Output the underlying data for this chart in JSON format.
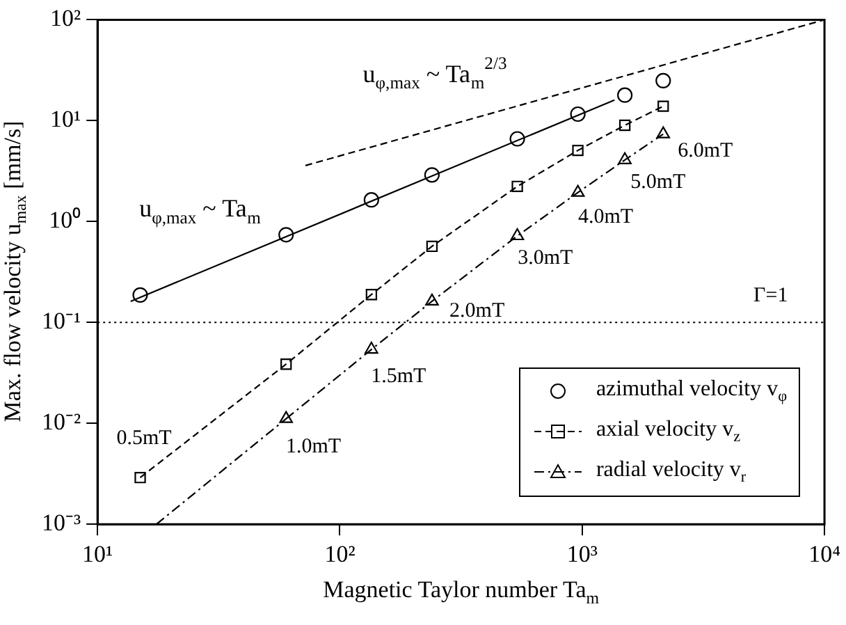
{
  "chart_data": {
    "type": "line",
    "xlabel": "Magnetic Taylor number Ta$_{m}$",
    "ylabel": "Max. flow velocity u$_{max}$ [mm/s]",
    "log": "xy",
    "xlim": [
      10,
      10000
    ],
    "xticks": [
      {
        "value": 10,
        "label": "10¹"
      },
      {
        "value": 100,
        "label": "10²"
      },
      {
        "value": 1000,
        "label": "10³"
      },
      {
        "value": 10000,
        "label": "10⁴"
      }
    ],
    "ylim": [
      0.001,
      100
    ],
    "yticks": [
      {
        "value": 0.001,
        "label": "10⁻³"
      },
      {
        "value": 0.01,
        "label": "10⁻²"
      },
      {
        "value": 0.1,
        "label": "10⁻¹"
      },
      {
        "value": 1,
        "label": "10⁰"
      },
      {
        "value": 10,
        "label": "10¹"
      },
      {
        "value": 100,
        "label": "10²"
      }
    ],
    "grid": false,
    "legend": "bottom right",
    "series": [
      {
        "name": "azimuthal velocity v$_{φ}$",
        "type": "scatter",
        "marker": "circle",
        "color": "#000000",
        "x": [
          15,
          60,
          135,
          240,
          540,
          960,
          1500,
          2160
        ],
        "values": [
          0.187,
          0.74,
          1.64,
          2.9,
          6.6,
          11.6,
          17.9,
          24.9
        ]
      },
      {
        "name": "axial velocity v$_{z}$",
        "marker": "square",
        "line_style": "dashed",
        "color": "#000000",
        "x": [
          15,
          60,
          135,
          240,
          540,
          960,
          1500,
          2160
        ],
        "values": [
          0.0029,
          0.0386,
          0.189,
          0.568,
          2.23,
          5.07,
          9.0,
          13.9
        ]
      },
      {
        "name": "radial velocity v$_{r}$",
        "marker": "triangle",
        "line_style": "dashdot",
        "color": "#000000",
        "x": [
          60,
          135,
          240,
          540,
          960,
          1500,
          2160
        ],
        "values": [
          0.0111,
          0.054,
          0.162,
          0.72,
          1.94,
          4.08,
          7.36
        ]
      },
      {
        "marker": "none",
        "line_style": "solid",
        "color": "#000000",
        "x": [
          13.7,
          1360
        ],
        "values": [
          0.162,
          16.0
        ]
      },
      {
        "marker": "none",
        "line_style": "dashed",
        "color": "#000000",
        "x": [
          72.1,
          10000
        ],
        "values": [
          3.59,
          100
        ]
      },
      {
        "marker": "none",
        "line_style": "dashdot",
        "color": "#000000",
        "x": [
          17.5,
          60
        ],
        "values": [
          0.001,
          0.0111
        ]
      }
    ],
    "ref_lines": [
      {
        "axis": "y",
        "value": 0.1,
        "line_style": "dotted",
        "color": "#000000"
      }
    ],
    "annotations": [
      "u$_{φ,max}$ ~ Ta$_{m}$",
      "u$_{φ,max}$ ~ Ta$_{m}$$^{2/3}$",
      "0.5mT",
      "1.0mT",
      "1.5mT",
      "2.0mT",
      "3.0mT",
      "4.0mT",
      "5.0mT",
      "6.0mT",
      "Γ=1"
    ]
  }
}
